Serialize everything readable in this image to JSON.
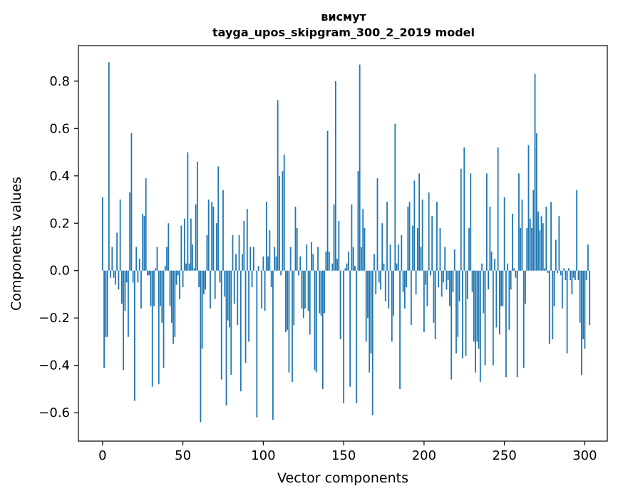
{
  "chart_data": {
    "type": "bar",
    "title": "висмут",
    "subtitle": "tayga_upos_skipgram_300_2_2019 model",
    "xlabel": "Vector components",
    "ylabel": "Components values",
    "xlim": [
      -15,
      314
    ],
    "ylim": [
      -0.72,
      0.95
    ],
    "xticks": [
      0,
      50,
      100,
      150,
      200,
      250,
      300
    ],
    "yticks": [
      -0.6,
      -0.4,
      -0.2,
      0.0,
      0.2,
      0.4,
      0.6,
      0.8
    ],
    "ytick_labels": [
      "−0.6",
      "−0.4",
      "−0.2",
      "0.0",
      "0.2",
      "0.4",
      "0.6",
      "0.8"
    ],
    "xtick_labels": [
      "0",
      "50",
      "100",
      "150",
      "200",
      "250",
      "300"
    ],
    "bar_color": "#1f77b4",
    "values": [
      0.31,
      -0.41,
      -0.28,
      -0.28,
      0.88,
      -0.03,
      0.1,
      -0.03,
      -0.06,
      0.16,
      -0.08,
      0.3,
      -0.14,
      -0.42,
      -0.17,
      -0.05,
      -0.28,
      0.33,
      0.58,
      -0.05,
      -0.55,
      0.1,
      -0.05,
      0.05,
      -0.16,
      0.24,
      0.23,
      0.39,
      -0.02,
      -0.02,
      -0.15,
      -0.49,
      -0.15,
      0.01,
      0.1,
      -0.48,
      -0.15,
      -0.22,
      -0.41,
      0.02,
      0.1,
      0.2,
      -0.15,
      -0.22,
      -0.31,
      -0.28,
      -0.06,
      -0.02,
      -0.12,
      0.19,
      -0.07,
      0.22,
      0.03,
      0.5,
      0.03,
      0.22,
      0.11,
      0.01,
      0.28,
      0.46,
      -0.07,
      -0.64,
      -0.33,
      -0.1,
      -0.08,
      0.15,
      0.3,
      -0.16,
      0.29,
      0.27,
      -0.12,
      0.2,
      0.44,
      -0.05,
      -0.46,
      0.34,
      -0.11,
      -0.57,
      -0.21,
      -0.24,
      -0.44,
      0.15,
      -0.14,
      0.07,
      -0.23,
      0.15,
      -0.51,
      0.07,
      0.21,
      -0.39,
      0.26,
      -0.3,
      0.1,
      -0.07,
      0.1,
      0.0,
      -0.62,
      0.02,
      0.0,
      -0.16,
      0.06,
      -0.17,
      0.29,
      0.06,
      0.17,
      -0.07,
      -0.63,
      0.1,
      0.06,
      0.72,
      0.4,
      -0.02,
      0.42,
      0.49,
      -0.26,
      -0.25,
      -0.43,
      0.1,
      -0.47,
      -0.23,
      0.27,
      0.18,
      -0.02,
      0.06,
      -0.16,
      -0.2,
      -0.16,
      0.11,
      -0.17,
      -0.27,
      0.12,
      0.07,
      -0.42,
      -0.43,
      0.1,
      -0.18,
      -0.19,
      -0.5,
      -0.18,
      0.08,
      0.59,
      0.08,
      0.0,
      0.03,
      0.28,
      0.8,
      0.05,
      0.21,
      -0.29,
      0.0,
      -0.56,
      0.01,
      0.03,
      0.08,
      -0.49,
      0.28,
      0.1,
      0.02,
      -0.56,
      0.42,
      0.87,
      0.1,
      0.26,
      0.18,
      -0.3,
      -0.2,
      -0.43,
      -0.35,
      -0.61,
      0.07,
      -0.1,
      0.39,
      -0.05,
      -0.08,
      0.2,
      0.03,
      -0.13,
      0.29,
      -0.16,
      0.11,
      -0.3,
      -0.19,
      0.62,
      0.03,
      0.11,
      -0.5,
      0.15,
      -0.09,
      -0.16,
      -0.07,
      0.27,
      0.29,
      -0.23,
      0.19,
      0.38,
      -0.1,
      0.18,
      0.41,
      0.1,
      0.3,
      -0.26,
      -0.06,
      -0.15,
      0.33,
      -0.02,
      0.23,
      -0.22,
      -0.29,
      0.29,
      -0.07,
      0.18,
      -0.11,
      -0.05,
      0.1,
      -0.08,
      -0.04,
      -0.15,
      -0.46,
      -0.09,
      0.09,
      -0.35,
      -0.28,
      -0.13,
      0.43,
      -0.37,
      0.52,
      -0.36,
      -0.12,
      0.18,
      0.41,
      -0.09,
      -0.3,
      -0.43,
      -0.3,
      -0.33,
      -0.47,
      0.03,
      -0.18,
      -0.4,
      0.41,
      -0.08,
      0.27,
      0.08,
      -0.4,
      0.05,
      -0.24,
      0.52,
      -0.27,
      -0.15,
      -0.15,
      0.31,
      -0.45,
      0.03,
      -0.25,
      -0.08,
      0.24,
      0.01,
      -0.03,
      -0.45,
      0.41,
      0.18,
      0.3,
      -0.41,
      -0.14,
      0.18,
      0.53,
      0.22,
      0.18,
      0.34,
      0.83,
      0.58,
      0.25,
      0.17,
      0.23,
      0.2,
      0.01,
      0.27,
      -0.01,
      -0.31,
      0.29,
      -0.29,
      -0.15,
      0.13,
      -0.01,
      0.23,
      -0.02,
      -0.16,
      0.01,
      -0.04,
      -0.35,
      0.01,
      -0.04,
      -0.1,
      -0.03,
      -0.04,
      0.34,
      -0.04,
      -0.22,
      -0.44,
      -0.29,
      -0.33,
      -0.04,
      0.11,
      -0.23
    ]
  }
}
